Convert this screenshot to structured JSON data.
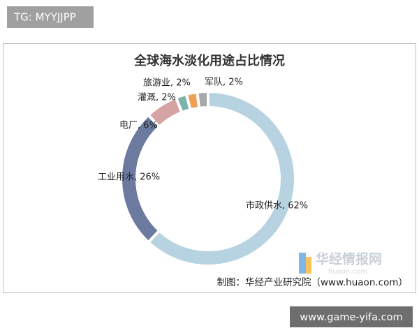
{
  "chart_data": {
    "type": "pie",
    "title": "全球海水淡化用途占比情况",
    "values": [
      62,
      26,
      6,
      2,
      2,
      2
    ],
    "value_labels": [
      "市政供水, 62%",
      "工业用水, 26%",
      "电厂, 6%",
      "灌溉, 2%",
      "旅游业, 2%",
      "军队, 2%"
    ],
    "colors": [
      "#b7d3e2",
      "#6c7aa0",
      "#d6a3a4",
      "#7db3ad",
      "#eea054",
      "#a8a8a8"
    ],
    "donut": true
  },
  "page": {
    "tag": "TG: MYYJJPP",
    "logo": "华经情报网",
    "logo_sub": "huaon.com",
    "source": "制图：华经产业研究院（www.huaon.com）",
    "footer": "www.game-yifa.com"
  }
}
